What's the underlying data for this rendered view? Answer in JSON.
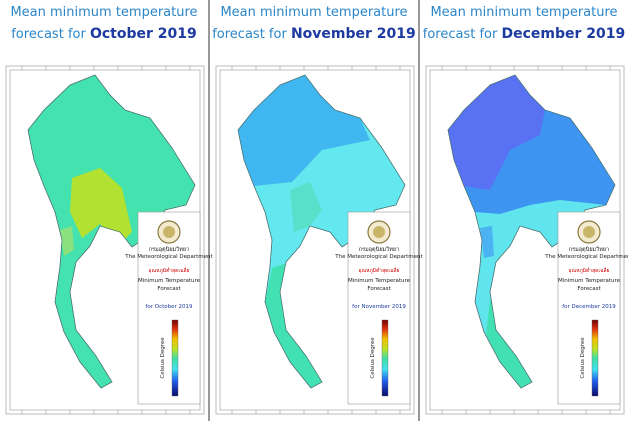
{
  "panels": [
    {
      "title_line1": "Mean minimum temperature",
      "title_prefix": "forecast for",
      "title_month": "October 2019",
      "legend": {
        "agency_thai": "กรมอุตุนิยมวิทยา",
        "agency": "The Meteorological Department",
        "heading_thai": "อุณหภูมิต่ำสุดเฉลี่ย",
        "heading": "Minimum Temperature",
        "subheading": "Forecast",
        "period": "for October 2019",
        "unit": "Celsius Degree"
      }
    },
    {
      "title_line1": "Mean minimum temperature",
      "title_prefix": "forecast for",
      "title_month": "November 2019",
      "legend": {
        "agency_thai": "กรมอุตุนิยมวิทยา",
        "agency": "The Meteorological Department",
        "heading_thai": "อุณหภูมิต่ำสุดเฉลี่ย",
        "heading": "Minimum Temperature",
        "subheading": "Forecast",
        "period": "for November 2019",
        "unit": "Celsius Degree"
      }
    },
    {
      "title_line1": "Mean minimum temperature",
      "title_prefix": "forecast for",
      "title_month": "December 2019",
      "legend": {
        "agency_thai": "กรมอุตุนิยมวิทยา",
        "agency": "The Meteorological Department",
        "heading_thai": "อุณหภูมิต่ำสุดเฉลี่ย",
        "heading": "Minimum Temperature",
        "subheading": "Forecast",
        "period": "for December 2019",
        "unit": "Celsius Degree"
      }
    }
  ]
}
